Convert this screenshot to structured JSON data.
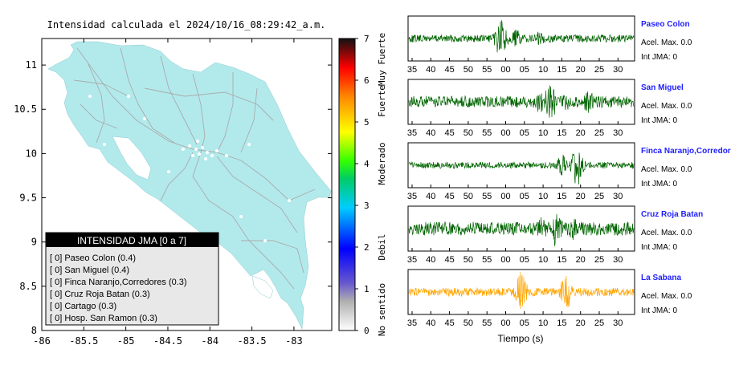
{
  "map": {
    "title": "Intensidad calculada el 2024/10/16_08:29:42_a.m.",
    "xlim": [
      -86,
      -82.55
    ],
    "ylim": [
      8,
      11.3
    ],
    "x_ticks": [
      "-86",
      "-85.5",
      "-85",
      "-84.5",
      "-84",
      "-83.5",
      "-83"
    ],
    "y_ticks": [
      "8",
      "8.5",
      "9",
      "9.5",
      "10",
      "10.5",
      "11"
    ],
    "land_color": "#b2eaec",
    "road_color": "#aaaaaa"
  },
  "colorbar": {
    "ticks": [
      "0",
      "1",
      "2",
      "3",
      "4",
      "5",
      "6",
      "7"
    ],
    "labels": [
      "No sentido",
      "Debil",
      "Moderado",
      "Fuerte",
      "Muy Fuerte"
    ]
  },
  "legend": {
    "title": "INTENSIDAD JMA [0 a 7]",
    "items": [
      "[ 0] Paseo Colon (0.4)",
      "[ 0] San Miguel (0.4)",
      "[ 0] Finca Naranjo,Corredores (0.3)",
      "[ 0] Cruz Roja Batan (0.3)",
      "[ 0] Cartago (0.3)",
      "[ 0] Hosp. San Ramon (0.3)"
    ]
  },
  "chart_data": [
    {
      "type": "heatmap",
      "title": "Intensidad calculada el 2024/10/16_08:29:42_a.m.",
      "xlim": [
        -86,
        -82.55
      ],
      "ylim": [
        8,
        11.3
      ],
      "colorbar_range": [
        0,
        7
      ]
    },
    {
      "type": "line",
      "xlabel": "Tiempo (s)",
      "x_ticks": [
        "35",
        "40",
        "45",
        "50",
        "55",
        "00",
        "05",
        "10",
        "15",
        "20",
        "25",
        "30"
      ],
      "series": [
        {
          "name": "Paseo Colon",
          "accel": "Acel. Max. 0.0",
          "jma": "Int JMA: 0",
          "color": "#006400",
          "bursts": [
            [
              41,
              1.0
            ],
            [
              48,
              0.45
            ],
            [
              58,
              0.35
            ]
          ],
          "noise": 0.18
        },
        {
          "name": "San Miguel",
          "accel": "Acel. Max. 0.0",
          "jma": "Int JMA: 0",
          "color": "#006400",
          "bursts": [
            [
              63,
              1.0
            ],
            [
              58,
              0.55
            ],
            [
              80,
              0.55
            ],
            [
              70,
              0.4
            ]
          ],
          "noise": 0.28
        },
        {
          "name": "Finca Naranjo,Corredores",
          "accel": "Acel. Max. 0.0",
          "jma": "Int JMA: 0",
          "color": "#006400",
          "bursts": [
            [
              75,
              1.0
            ],
            [
              68,
              0.5
            ]
          ],
          "noise": 0.15
        },
        {
          "name": "Cruz Roja Batan",
          "accel": "Acel. Max. 0.0",
          "jma": "Int JMA: 0",
          "color": "#006400",
          "bursts": [
            [
              66,
              1.0
            ],
            [
              59,
              0.6
            ],
            [
              73,
              0.55
            ]
          ],
          "noise": 0.32
        },
        {
          "name": "La Sabana",
          "accel": "Acel. Max. 0.0",
          "jma": "Int JMA: 0",
          "color": "#ffa500",
          "bursts": [
            [
              50,
              1.0
            ],
            [
              70,
              0.9
            ]
          ],
          "noise": 0.2
        }
      ]
    }
  ]
}
